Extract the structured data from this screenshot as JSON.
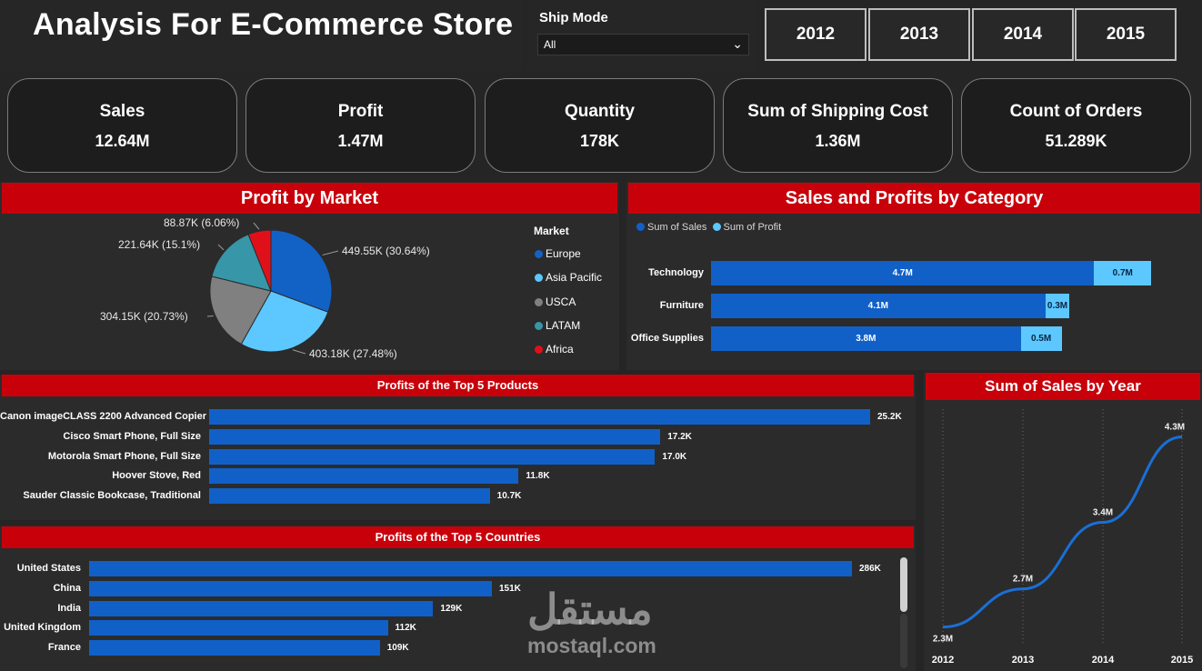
{
  "header": {
    "title": "Analysis For E-Commerce Store"
  },
  "filter": {
    "label": "Ship Mode",
    "selected": "All"
  },
  "year_buttons": [
    "2012",
    "2013",
    "2014",
    "2015"
  ],
  "kpis": [
    {
      "label": "Sales",
      "value": "12.64M"
    },
    {
      "label": "Profit",
      "value": "1.47M"
    },
    {
      "label": "Quantity",
      "value": "178K"
    },
    {
      "label": "Sum of Shipping Cost",
      "value": "1.36M"
    },
    {
      "label": "Count of Orders",
      "value": "51.289K"
    }
  ],
  "colors": {
    "accent_red": "#c8000a",
    "sales_blue": "#1160c8",
    "profit_lightblue": "#5cc8ff"
  },
  "watermark": {
    "text": "mostaql.com"
  },
  "chart_data": [
    {
      "type": "pie",
      "title": "Profit by Market",
      "legend_title": "Market",
      "legend_position": "right",
      "slices": [
        {
          "name": "Europe",
          "value": 449.55,
          "label": "449.55K (30.64%)",
          "color": "#1262c6"
        },
        {
          "name": "Asia Pacific",
          "value": 403.18,
          "label": "403.18K (27.48%)",
          "color": "#5cc8ff"
        },
        {
          "name": "USCA",
          "value": 304.15,
          "label": "304.15K (20.73%)",
          "color": "#808080"
        },
        {
          "name": "LATAM",
          "value": 221.64,
          "label": "221.64K (15.1%)",
          "color": "#3796a8"
        },
        {
          "name": "Africa",
          "value": 88.87,
          "label": "88.87K (6.06%)",
          "color": "#e0101a"
        }
      ]
    },
    {
      "type": "bar",
      "title": "Sales and Profits by Category",
      "stacked": true,
      "legend_position": "top-left",
      "categories": [
        "Technology",
        "Furniture",
        "Office Supplies"
      ],
      "series": [
        {
          "name": "Sum of Sales",
          "values": [
            4.7,
            4.1,
            3.8
          ],
          "labels": [
            "4.7M",
            "4.1M",
            "3.8M"
          ],
          "color": "#1160c8"
        },
        {
          "name": "Sum of Profit",
          "values": [
            0.7,
            0.3,
            0.5
          ],
          "labels": [
            "0.7M",
            "0.3M",
            "0.5M"
          ],
          "color": "#5cc8ff"
        }
      ],
      "xlim": [
        0,
        5.8
      ]
    },
    {
      "type": "bar",
      "title": "Profits of the Top 5 Products",
      "categories": [
        "Canon imageCLASS 2200 Advanced Copier",
        "Cisco Smart Phone, Full Size",
        "Motorola Smart Phone, Full Size",
        "Hoover Stove, Red",
        "Sauder Classic Bookcase, Traditional"
      ],
      "values": [
        25.2,
        17.2,
        17.0,
        11.8,
        10.7
      ],
      "labels": [
        "25.2K",
        "17.2K",
        "17.0K",
        "11.8K",
        "10.7K"
      ]
    },
    {
      "type": "bar",
      "title": "Profits of the Top 5 Countries",
      "categories": [
        "United States",
        "China",
        "India",
        "United Kingdom",
        "France"
      ],
      "values": [
        286,
        151,
        129,
        112,
        109
      ],
      "labels": [
        "286K",
        "151K",
        "129K",
        "112K",
        "109K"
      ]
    },
    {
      "type": "line",
      "title": "Sum of Sales by Year",
      "x": [
        "2012",
        "2013",
        "2014",
        "2015"
      ],
      "values": [
        2.3,
        2.7,
        3.4,
        4.3
      ],
      "labels": [
        "2.3M",
        "2.7M",
        "3.4M",
        "4.3M"
      ],
      "ylim": [
        2.2,
        4.4
      ],
      "grid": "vertical dotted"
    }
  ]
}
